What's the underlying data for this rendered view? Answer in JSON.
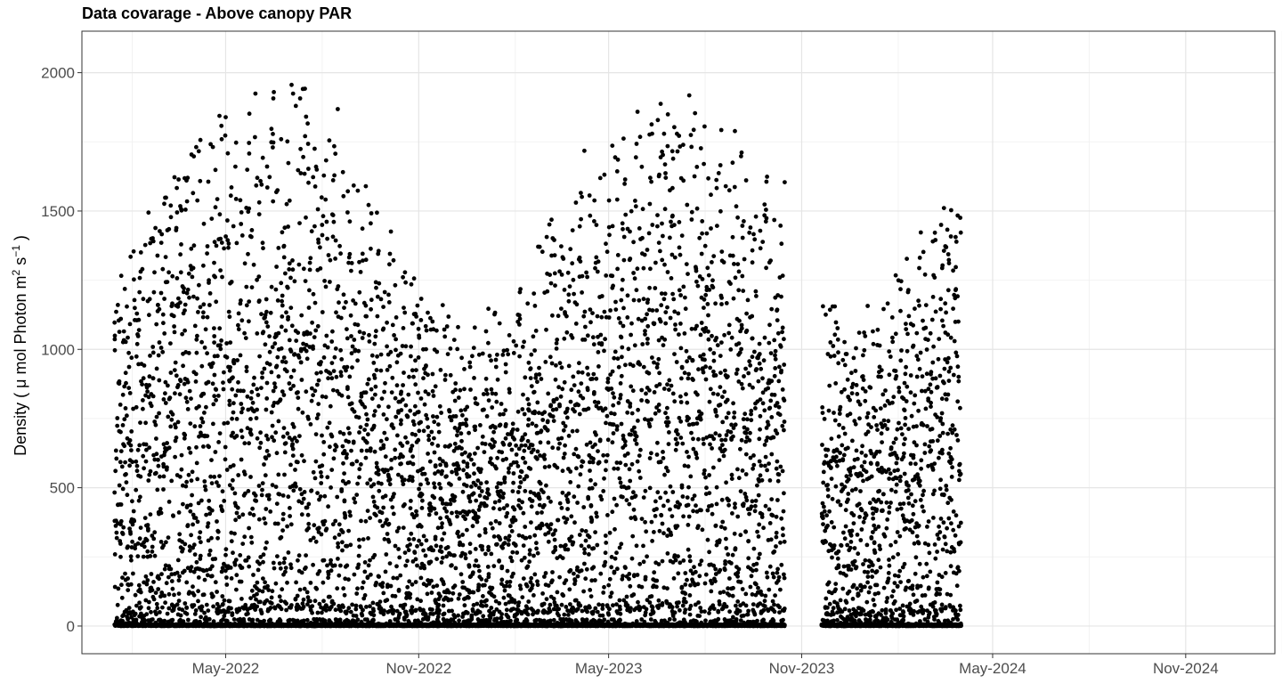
{
  "chart_data": {
    "type": "scatter",
    "title": "Data covarage - Above canopy PAR",
    "ylabel_main": "Density ( μ mol Photon m",
    "ylabel_sup1": "2",
    "ylabel_mid": " s",
    "ylabel_sup2": "−1",
    "ylabel_end": " )",
    "xlabel": "",
    "x_type": "date",
    "xlim": [
      "2021-12-15",
      "2025-01-25"
    ],
    "ylim": [
      -100,
      2150
    ],
    "x_ticks": [
      {
        "date": "2022-05-01",
        "label": "May-2022"
      },
      {
        "date": "2022-11-01",
        "label": "Nov-2022"
      },
      {
        "date": "2023-05-01",
        "label": "May-2023"
      },
      {
        "date": "2023-11-01",
        "label": "Nov-2023"
      },
      {
        "date": "2024-05-01",
        "label": "May-2024"
      },
      {
        "date": "2024-11-01",
        "label": "Nov-2024"
      }
    ],
    "x_minor_ticks": [
      "2022-02-01",
      "2022-08-01",
      "2023-02-01",
      "2023-08-01",
      "2024-02-01",
      "2024-08-01",
      "2025-02-01"
    ],
    "y_ticks": [
      0,
      500,
      1000,
      1500,
      2000
    ],
    "y_minor_ticks": [
      250,
      750,
      1250,
      1750
    ],
    "grid": true,
    "point_color": "#000000",
    "coverage_periods": [
      {
        "start": "2022-01-15",
        "end": "2023-10-15"
      },
      {
        "start": "2023-11-20",
        "end": "2024-03-31"
      }
    ],
    "seasonal_envelope": [
      {
        "date": "2022-01-15",
        "max_par": 1250
      },
      {
        "date": "2022-03-01",
        "max_par": 1600
      },
      {
        "date": "2022-05-01",
        "max_par": 1880
      },
      {
        "date": "2022-06-15",
        "max_par": 2030
      },
      {
        "date": "2022-08-01",
        "max_par": 1980
      },
      {
        "date": "2022-09-15",
        "max_par": 1650
      },
      {
        "date": "2022-11-01",
        "max_par": 1250
      },
      {
        "date": "2022-12-20",
        "max_par": 1100
      },
      {
        "date": "2023-02-01",
        "max_par": 1250
      },
      {
        "date": "2023-04-01",
        "max_par": 1700
      },
      {
        "date": "2023-06-01",
        "max_par": 1950
      },
      {
        "date": "2023-07-15",
        "max_par": 1960
      },
      {
        "date": "2023-09-01",
        "max_par": 1800
      },
      {
        "date": "2023-10-15",
        "max_par": 1650
      },
      {
        "date": "2023-11-20",
        "max_par": 1200
      },
      {
        "date": "2024-01-01",
        "max_par": 1150
      },
      {
        "date": "2024-02-15",
        "max_par": 1450
      },
      {
        "date": "2024-03-31",
        "max_par": 1620
      }
    ]
  }
}
